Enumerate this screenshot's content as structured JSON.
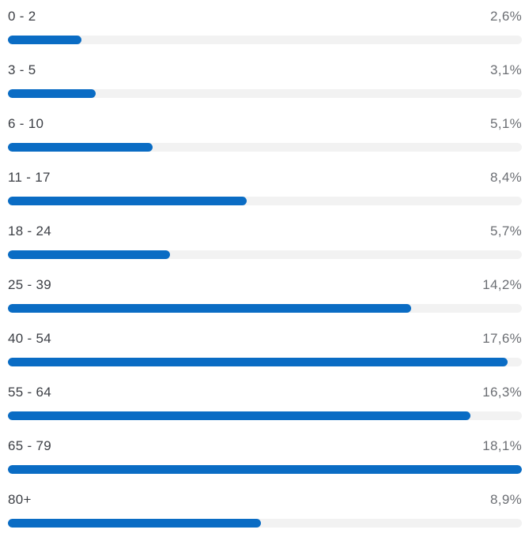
{
  "chart_data": {
    "type": "bar",
    "orientation": "horizontal",
    "categories": [
      "0 - 2",
      "3 - 5",
      "6 - 10",
      "11 - 17",
      "18 - 24",
      "25 - 39",
      "40 - 54",
      "55 - 64",
      "65 - 79",
      "80+"
    ],
    "values": [
      2.6,
      3.1,
      5.1,
      8.4,
      5.7,
      14.2,
      17.6,
      16.3,
      18.1,
      8.9
    ],
    "value_labels": [
      "2,6%",
      "3,1%",
      "5,1%",
      "8,4%",
      "5,7%",
      "14,2%",
      "17,6%",
      "16,3%",
      "18,1%",
      "8,9%"
    ],
    "xlim": [
      0,
      18.1
    ],
    "grid": false,
    "legend": "none",
    "colors": {
      "bar": "#0a6cc4",
      "track": "#f2f2f2",
      "label": "#3b3e44",
      "value": "#6b6e73"
    }
  }
}
